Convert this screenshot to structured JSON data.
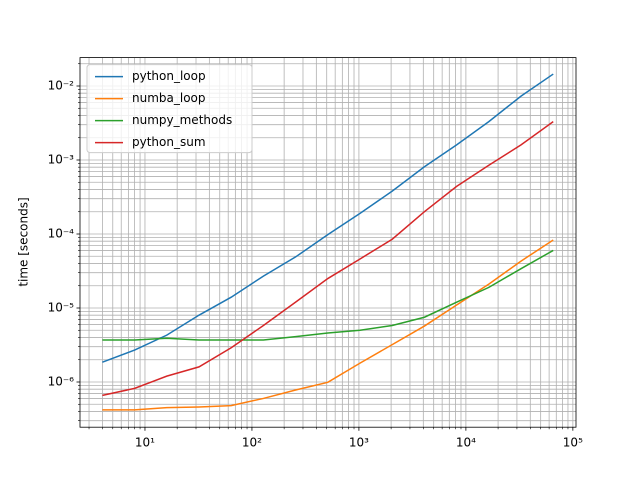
{
  "chart_data": {
    "type": "line",
    "ylabel": "time [seconds]",
    "xscale": "log",
    "yscale": "log",
    "grid": true,
    "minor_grid": true,
    "legend": "upper left",
    "x": [
      4,
      8,
      16,
      32,
      64,
      128,
      256,
      512,
      1024,
      2048,
      4096,
      8192,
      16384,
      32768,
      65536
    ],
    "series": [
      {
        "name": "python_loop",
        "color": "#1f77b4",
        "values": [
          1.85e-06,
          2.7e-06,
          4.3e-06,
          8e-06,
          1.4e-05,
          2.7e-05,
          4.9e-05,
          9.8e-05,
          0.00019,
          0.00038,
          0.00081,
          0.0016,
          0.0033,
          0.0073,
          0.0145
        ]
      },
      {
        "name": "numba_loop",
        "color": "#ff7f0e",
        "values": [
          4.2e-07,
          4.2e-07,
          4.5e-07,
          4.6e-07,
          4.8e-07,
          6e-07,
          7.8e-07,
          9.9e-07,
          1.8e-06,
          3.2e-06,
          5.7e-06,
          1.1e-05,
          2.1e-05,
          4.3e-05,
          8.3e-05
        ]
      },
      {
        "name": "numpy_methods",
        "color": "#2ca02c",
        "values": [
          3.7e-06,
          3.7e-06,
          3.9e-06,
          3.7e-06,
          3.7e-06,
          3.7e-06,
          4.1e-06,
          4.6e-06,
          5e-06,
          5.8e-06,
          7.5e-06,
          1.2e-05,
          1.9e-05,
          3.4e-05,
          6e-05
        ]
      },
      {
        "name": "python_sum",
        "color": "#d62728",
        "values": [
          6.6e-07,
          8.2e-07,
          1.2e-06,
          1.6e-06,
          2.9e-06,
          5.8e-06,
          1.2e-05,
          2.5e-05,
          4.6e-05,
          8.5e-05,
          0.0002,
          0.00044,
          0.00085,
          0.0016,
          0.0033
        ]
      }
    ],
    "xlim": [
      2.47,
      107000
    ],
    "ylim": [
      2.45e-07,
      0.0242
    ],
    "xticks": [
      {
        "value": 10,
        "label": "10¹"
      },
      {
        "value": 100,
        "label": "10²"
      },
      {
        "value": 1000,
        "label": "10³"
      },
      {
        "value": 10000,
        "label": "10⁴"
      },
      {
        "value": 100000,
        "label": "10⁵"
      }
    ],
    "yticks": [
      {
        "value": 1e-06,
        "label": "10⁻⁶"
      },
      {
        "value": 1e-05,
        "label": "10⁻⁵"
      },
      {
        "value": 0.0001,
        "label": "10⁻⁴"
      },
      {
        "value": 0.001,
        "label": "10⁻³"
      },
      {
        "value": 0.01,
        "label": "10⁻²"
      }
    ],
    "xminorticks": [
      3,
      4,
      5,
      6,
      7,
      8,
      9,
      20,
      30,
      40,
      50,
      60,
      70,
      80,
      90,
      200,
      300,
      400,
      500,
      600,
      700,
      800,
      900,
      2000,
      3000,
      4000,
      5000,
      6000,
      7000,
      8000,
      9000,
      20000,
      30000,
      40000,
      50000,
      60000,
      70000,
      80000,
      90000
    ],
    "yminorticks": [
      3e-07,
      4e-07,
      5e-07,
      6e-07,
      7e-07,
      8e-07,
      9e-07,
      2e-06,
      3e-06,
      4e-06,
      5e-06,
      6e-06,
      7e-06,
      8e-06,
      9e-06,
      2e-05,
      3e-05,
      4e-05,
      5e-05,
      6e-05,
      7e-05,
      8e-05,
      9e-05,
      0.0002,
      0.0003,
      0.0004,
      0.0005,
      0.0006,
      0.0007,
      0.0008,
      0.0009,
      0.002,
      0.003,
      0.004,
      0.005,
      0.006,
      0.007,
      0.008,
      0.009,
      0.02
    ]
  }
}
